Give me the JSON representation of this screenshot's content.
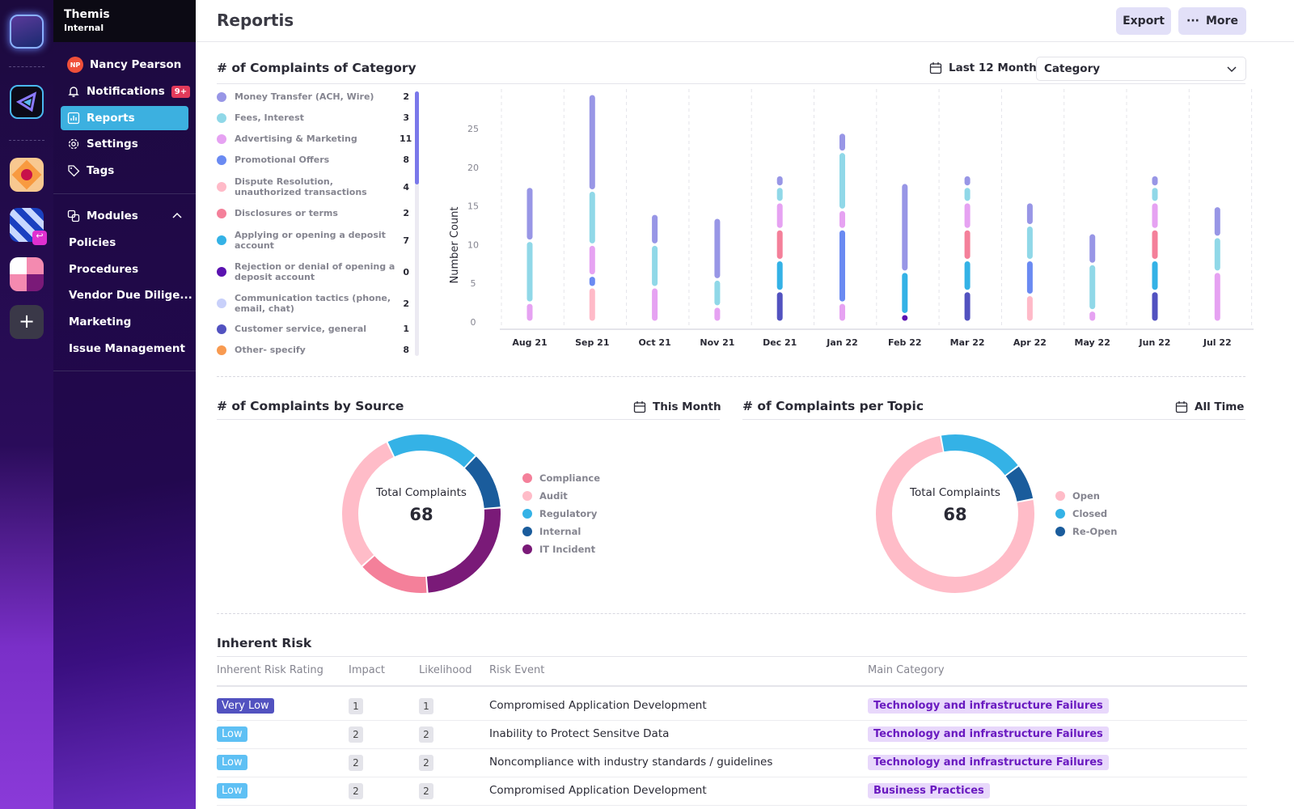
{
  "brand": {
    "title": "Themis",
    "subtitle": "Internal"
  },
  "sidebar": {
    "user": {
      "initials": "NP",
      "name": "Nancy Pearson"
    },
    "items": [
      {
        "label": "Notifications",
        "badge": "9+",
        "icon": "bell-icon"
      },
      {
        "label": "Reports",
        "icon": "bar-chart-icon",
        "active": true
      },
      {
        "label": "Settings",
        "icon": "gear-icon"
      },
      {
        "label": "Tags",
        "icon": "tag-icon"
      }
    ],
    "modules": {
      "label": "Modules",
      "items": [
        "Policies",
        "Procedures",
        "Vendor Due Dilige...",
        "Marketing",
        "Issue Management"
      ]
    }
  },
  "header": {
    "title": "Reportis",
    "export_label": "Export",
    "more_label": "More"
  },
  "category_section": {
    "title": "# of Complaints of Category",
    "date_filter": "Last 12 Month",
    "select_value": "Category",
    "legend": [
      {
        "label": "Money Transfer (ACH, Wire)",
        "count": "2",
        "color": "#9896e6"
      },
      {
        "label": "Fees, Interest",
        "count": "3",
        "color": "#90d8e8"
      },
      {
        "label": "Advertising & Marketing",
        "count": "11",
        "color": "#e6a2f2"
      },
      {
        "label": "Promotional Offers",
        "count": "8",
        "color": "#6a8af2"
      },
      {
        "label": "Dispute Resolution, unauthorized transactions",
        "count": "4",
        "color": "#ffbac8"
      },
      {
        "label": "Disclosures or terms",
        "count": "2",
        "color": "#f4809a"
      },
      {
        "label": "Applying or opening a deposit account",
        "count": "7",
        "color": "#34b2e6"
      },
      {
        "label": "Rejection or denial of opening a deposit account",
        "count": "0",
        "color": "#5a12b0"
      },
      {
        "label": "Communication tactics (phone, email, chat)",
        "count": "2",
        "color": "#c8d0fa"
      },
      {
        "label": "Customer service, general",
        "count": "1",
        "color": "#5252c0"
      },
      {
        "label": "Other- specify",
        "count": "8",
        "color": "#f89a50"
      }
    ]
  },
  "chart_data": {
    "type": "bar",
    "stacked": true,
    "ylabel": "Number Count",
    "ylim": [
      0,
      30
    ],
    "yticks": [
      0,
      5,
      10,
      15,
      20,
      25
    ],
    "grid": "vertical dashed",
    "categories": [
      "Aug 21",
      "Sep 21",
      "Oct 21",
      "Nov 21",
      "Dec 21",
      "Jan 22",
      "Feb 22",
      "Mar 22",
      "Apr 22",
      "May 22",
      "Jun 22",
      "Jul 22"
    ],
    "stacks": [
      [
        [
          "Advertising & Marketing",
          2.5
        ],
        [
          "Fees, Interest",
          8
        ],
        [
          "Money Transfer (ACH, Wire)",
          7
        ]
      ],
      [
        [
          "Dispute Resolution, unauthorized transactions",
          4.5
        ],
        [
          "Promotional Offers",
          1.5
        ],
        [
          "Advertising & Marketing",
          4
        ],
        [
          "Fees, Interest",
          7
        ],
        [
          "Money Transfer (ACH, Wire)",
          12.5
        ]
      ],
      [
        [
          "Advertising & Marketing",
          4.5
        ],
        [
          "Fees, Interest",
          5.5
        ],
        [
          "Money Transfer (ACH, Wire)",
          4
        ]
      ],
      [
        [
          "Advertising & Marketing",
          2
        ],
        [
          "Fees, Interest",
          3.5
        ],
        [
          "Money Transfer (ACH, Wire)",
          8
        ]
      ],
      [
        [
          "Customer service, general",
          4
        ],
        [
          "Applying or opening a deposit account",
          4
        ],
        [
          "Disclosures or terms",
          4
        ],
        [
          "Advertising & Marketing",
          3.5
        ],
        [
          "Fees, Interest",
          2
        ],
        [
          "Money Transfer (ACH, Wire)",
          1.5
        ]
      ],
      [
        [
          "Advertising & Marketing",
          2.5
        ],
        [
          "Promotional Offers",
          9.5
        ],
        [
          "Advertising & Marketing",
          2.5
        ],
        [
          "Fees, Interest",
          7.5
        ],
        [
          "Money Transfer (ACH, Wire)",
          2.5
        ]
      ],
      [
        [
          "Rejection or denial of opening a deposit account",
          1
        ],
        [
          "Applying or opening a deposit account",
          5.5
        ],
        [
          "Money Transfer (ACH, Wire)",
          11.5
        ]
      ],
      [
        [
          "Customer service, general",
          4
        ],
        [
          "Applying or opening a deposit account",
          4
        ],
        [
          "Disclosures or terms",
          4
        ],
        [
          "Advertising & Marketing",
          3.5
        ],
        [
          "Fees, Interest",
          2
        ],
        [
          "Money Transfer (ACH, Wire)",
          1.5
        ]
      ],
      [
        [
          "Dispute Resolution, unauthorized transactions",
          3.5
        ],
        [
          "Promotional Offers",
          4.5
        ],
        [
          "Fees, Interest",
          4.5
        ],
        [
          "Money Transfer (ACH, Wire)",
          3
        ]
      ],
      [
        [
          "Advertising & Marketing",
          1.5
        ],
        [
          "Fees, Interest",
          6
        ],
        [
          "Money Transfer (ACH, Wire)",
          4
        ]
      ],
      [
        [
          "Customer service, general",
          4
        ],
        [
          "Applying or opening a deposit account",
          4
        ],
        [
          "Disclosures or terms",
          4
        ],
        [
          "Advertising & Marketing",
          3.5
        ],
        [
          "Fees, Interest",
          2
        ],
        [
          "Money Transfer (ACH, Wire)",
          1.5
        ]
      ],
      [
        [
          "Advertising & Marketing",
          6.5
        ],
        [
          "Fees, Interest",
          4.5
        ],
        [
          "Money Transfer (ACH, Wire)",
          4
        ]
      ]
    ]
  },
  "source_section": {
    "title": "# of Complaints by Source",
    "date_filter": "This Month",
    "center_label": "Total Complaints",
    "total": "68",
    "slices": [
      {
        "label": "Compliance",
        "value": 10,
        "color": "#f4809a"
      },
      {
        "label": "Audit",
        "value": 20,
        "color": "#ffbcc8"
      },
      {
        "label": "Regulatory",
        "value": 13,
        "color": "#34b2e6"
      },
      {
        "label": "Internal",
        "value": 8,
        "color": "#1a5c9c"
      },
      {
        "label": "IT Incident",
        "value": 17,
        "color": "#7a1a78"
      }
    ]
  },
  "topic_section": {
    "title": "# of Complaints per Topic",
    "date_filter": "All Time",
    "center_label": "Total Complaints",
    "total": "68",
    "slices": [
      {
        "label": "Open",
        "value": 51,
        "color": "#ffbcc8"
      },
      {
        "label": "Closed",
        "value": 12,
        "color": "#34b2e6"
      },
      {
        "label": "Re-Open",
        "value": 5,
        "color": "#1a5c9c"
      }
    ]
  },
  "risk": {
    "title": "Inherent Risk",
    "columns": [
      "Inherent Risk Rating",
      "Impact",
      "Likelihood",
      "Risk Event",
      "Main Category"
    ],
    "rows": [
      {
        "rating": "Very Low",
        "rating_color": "#5252c0",
        "impact": "1",
        "likelihood": "1",
        "event": "Compromised Application Development",
        "category": "Technology and infrastructure Failures"
      },
      {
        "rating": "Low",
        "rating_color": "#5ec0f4",
        "impact": "2",
        "likelihood": "2",
        "event": "Inability to Protect Sensitve Data",
        "category": "Technology and infrastructure Failures"
      },
      {
        "rating": "Low",
        "rating_color": "#5ec0f4",
        "impact": "2",
        "likelihood": "2",
        "event": "Noncompliance with industry standards / guidelines",
        "category": "Technology and infrastructure Failures"
      },
      {
        "rating": "Low",
        "rating_color": "#5ec0f4",
        "impact": "2",
        "likelihood": "2",
        "event": "Compromised Application Development",
        "category": "Business Practices"
      }
    ]
  }
}
